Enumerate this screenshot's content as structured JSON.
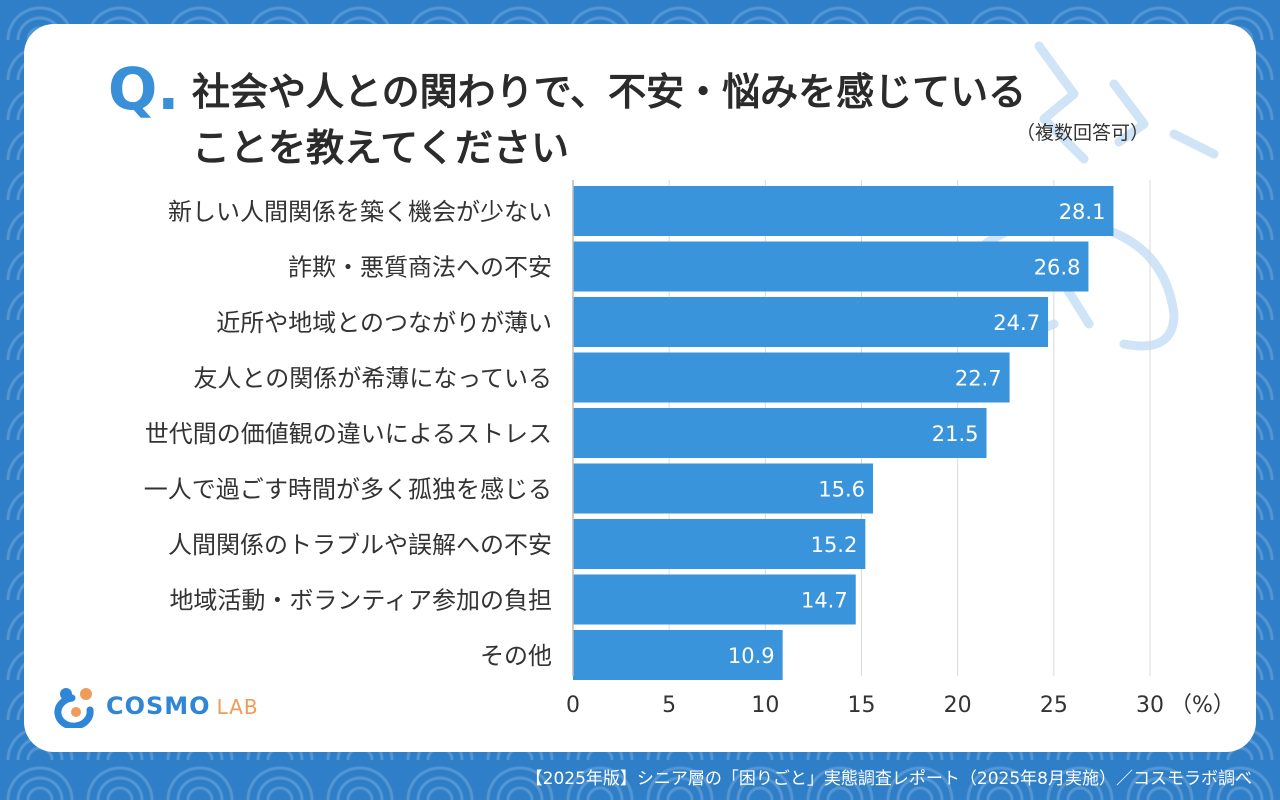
{
  "header": {
    "q_mark": "Q.",
    "title_line1": "社会や人との関わりで、不安・悩みを感じている",
    "title_line2": "ことを教えてください",
    "note": "（複数回答可）"
  },
  "chart_data": {
    "type": "bar",
    "orientation": "horizontal",
    "categories": [
      "新しい人間関係を築く機会が少ない",
      "詐欺・悪質商法への不安",
      "近所や地域とのつながりが薄い",
      "友人との関係が希薄になっている",
      "世代間の価値観の違いによるストレス",
      "一人で過ごす時間が多く孤独を感じる",
      "人間関係のトラブルや誤解への不安",
      "地域活動・ボランティア参加の負担",
      "その他"
    ],
    "values": [
      28.1,
      26.8,
      24.7,
      22.7,
      21.5,
      15.6,
      15.2,
      14.7,
      10.9
    ],
    "value_labels": [
      "28.1",
      "26.8",
      "24.7",
      "22.7",
      "21.5",
      "15.6",
      "15.2",
      "14.7",
      "10.9"
    ],
    "xlim": [
      0,
      30
    ],
    "xticks": [
      0,
      5,
      10,
      15,
      20,
      25,
      30
    ],
    "xtick_labels": [
      "0",
      "5",
      "10",
      "15",
      "20",
      "25",
      "30"
    ],
    "x_unit": "（%）",
    "grid": true,
    "bar_color": "#3a94dc"
  },
  "logo": {
    "name": "COSMO",
    "suffix": "LAB"
  },
  "footer": {
    "source": "【2025年版】シニア層の「困りごと」実態調査レポート（2025年8月実施）／コスモラボ調べ"
  },
  "colors": {
    "accent": "#3a8fd9",
    "background": "#2f7fc8",
    "logo_orange": "#ef9b5a"
  }
}
